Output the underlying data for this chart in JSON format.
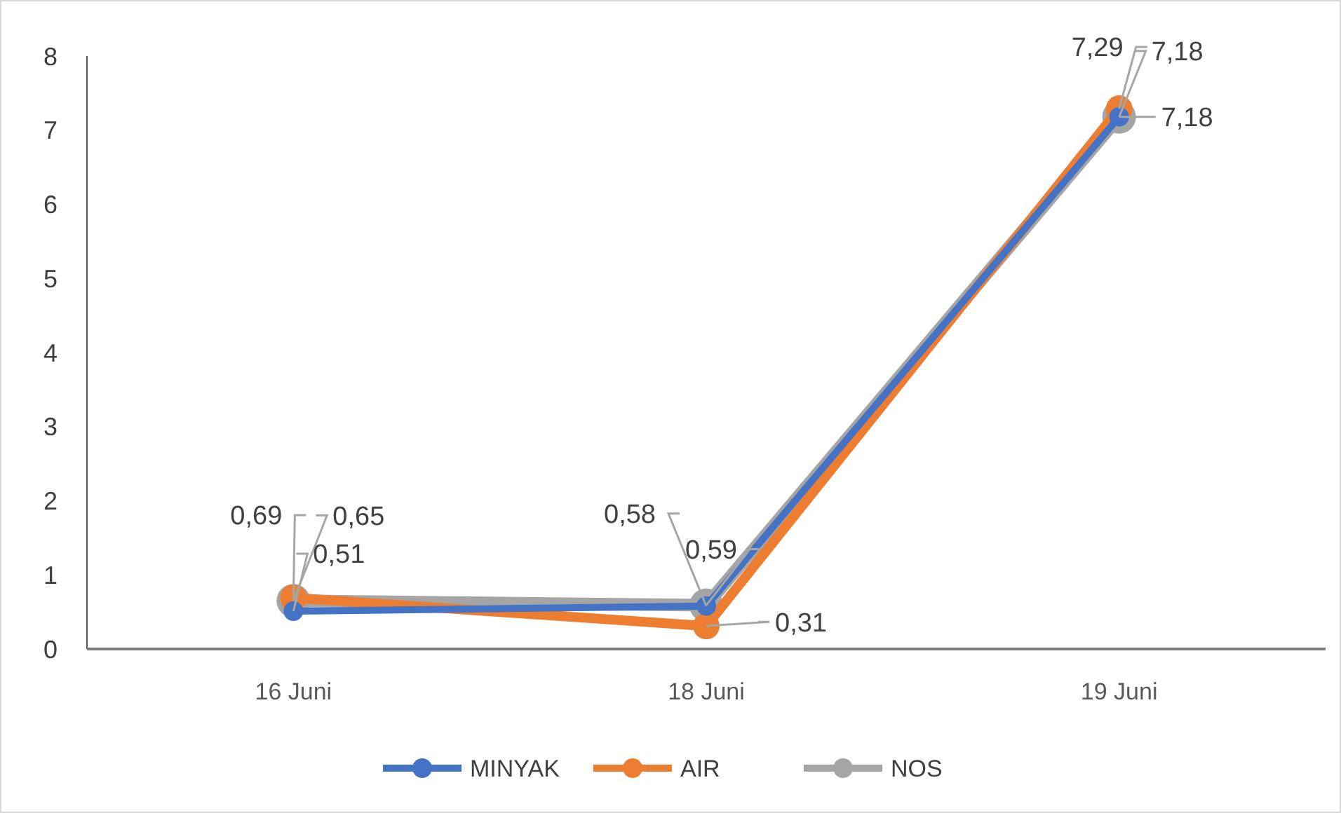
{
  "chart_data": {
    "type": "line",
    "categories": [
      "16 Juni",
      "18 Juni",
      "19 Juni"
    ],
    "series": [
      {
        "name": "MINYAK",
        "color": "#4472c4",
        "values": [
          0.51,
          0.58,
          7.18
        ],
        "value_labels": [
          "0,51",
          "0,58",
          "7,18"
        ]
      },
      {
        "name": "AIR",
        "color": "#ed7d31",
        "values": [
          0.69,
          0.31,
          7.29
        ],
        "value_labels": [
          "0,69",
          "0,31",
          "7,29"
        ]
      },
      {
        "name": "NOS",
        "color": "#a5a5a5",
        "values": [
          0.65,
          0.59,
          7.18
        ],
        "value_labels": [
          "0,65",
          "0,59",
          "7,18"
        ]
      }
    ],
    "ylim": [
      0,
      8
    ],
    "yticks": [
      0,
      1,
      2,
      3,
      4,
      5,
      6,
      7,
      8
    ],
    "grid": false,
    "legend": "bottom",
    "marker": "circle",
    "line_style": "solid"
  }
}
